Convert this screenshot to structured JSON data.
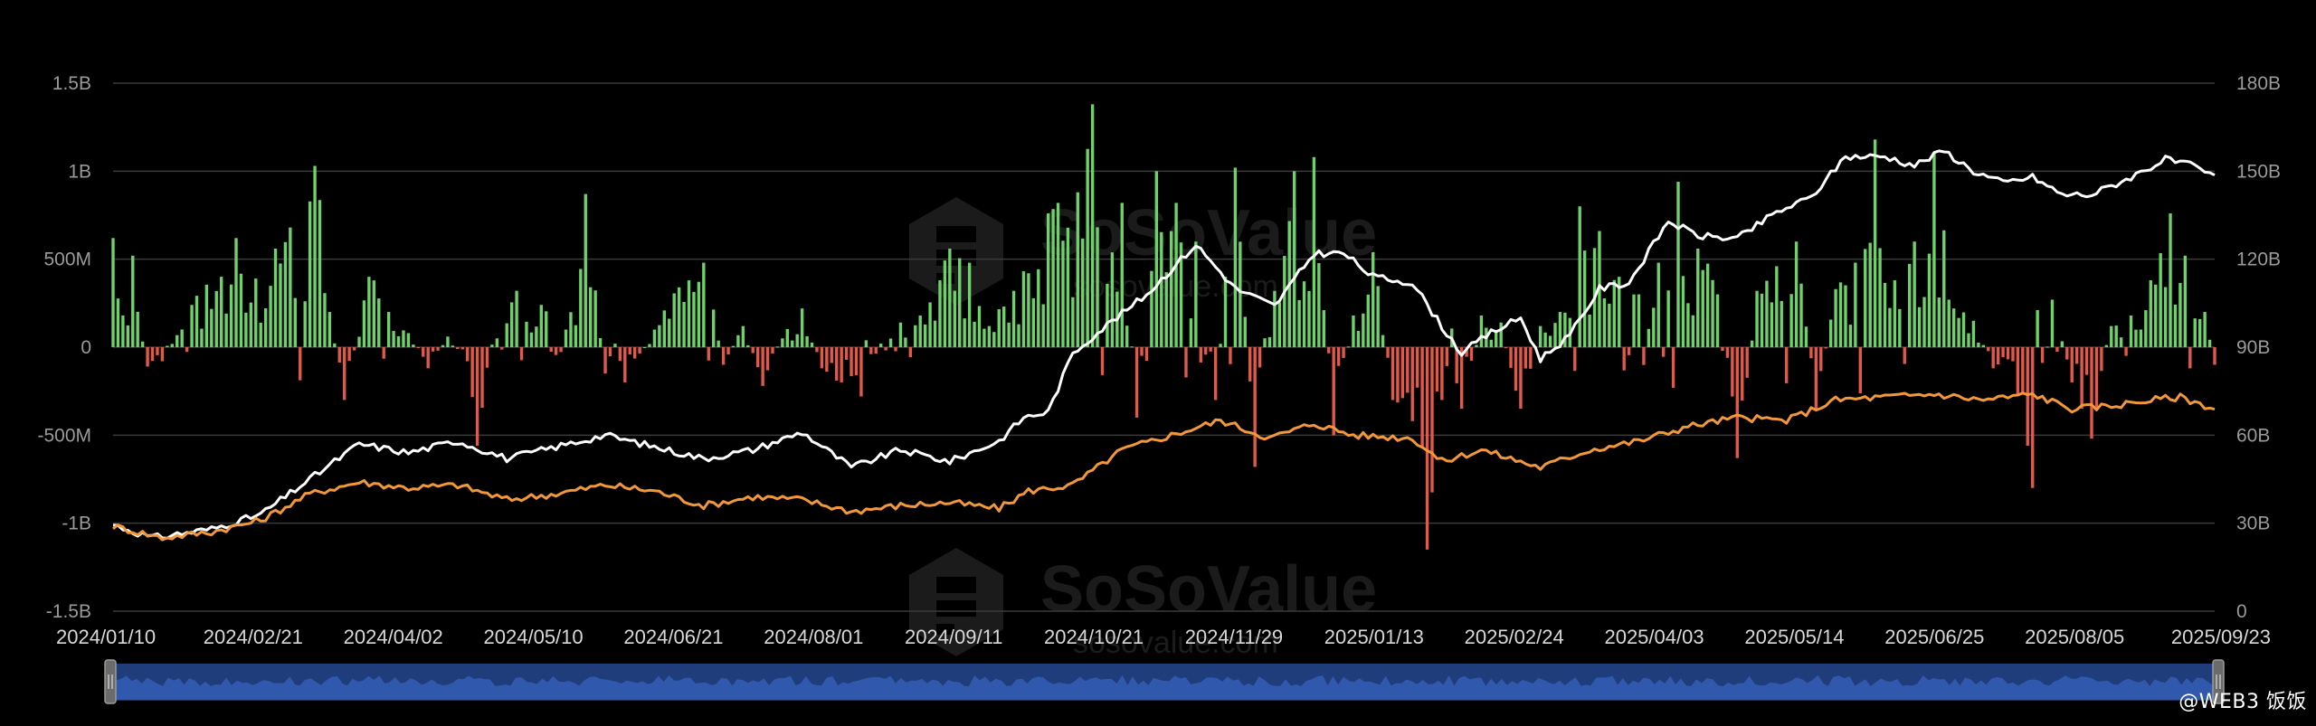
{
  "watermark": {
    "brand": "SoSoValue",
    "sub": "sosovalue.com"
  },
  "credit": "@WEB3 饭饭",
  "colors": {
    "background": "#000000",
    "inflow": "#6fd16a",
    "outflow": "#e2594a",
    "total_net_assets": "#ffffff",
    "cumulative_inflow": "#f2973a",
    "grid": "#3a3a3a",
    "axis_text": "#9a9a9a",
    "navigator": "#1e3d7a",
    "navigator_line": "#3f6fd6"
  },
  "chart_data": {
    "type": "bar",
    "legend": "none",
    "grid": true,
    "x_ticks": [
      "2024/01/10",
      "2024/02/21",
      "2024/04/02",
      "2024/05/10",
      "2024/06/21",
      "2024/08/01",
      "2024/09/11",
      "2024/10/21",
      "2024/11/29",
      "2025/01/13",
      "2025/02/24",
      "2025/04/03",
      "2025/05/14",
      "2025/06/25",
      "2025/08/05",
      "2025/09/23"
    ],
    "y_left": {
      "ticks": [
        "-1.5B",
        "-1B",
        "-500M",
        "0",
        "500M",
        "1B",
        "1.5B"
      ],
      "tick_values": [
        -1500,
        -1000,
        -500,
        0,
        500,
        1000,
        1500
      ],
      "range": [
        -1500,
        1500
      ],
      "unit": "M"
    },
    "y_right": {
      "ticks": [
        "0",
        "30B",
        "60B",
        "90B",
        "120B",
        "150B",
        "180B"
      ],
      "tick_values": [
        0,
        30,
        60,
        90,
        120,
        150,
        180
      ],
      "range": [
        0,
        180
      ],
      "unit": "B"
    },
    "n_days": 428,
    "daily_net_inflow": {
      "description_axis": "left",
      "keyframes": [
        {
          "t": 0,
          "v": 620
        },
        {
          "t": 2,
          "v": 180
        },
        {
          "t": 4,
          "v": 520
        },
        {
          "t": 7,
          "v": -110
        },
        {
          "t": 10,
          "v": -80
        },
        {
          "t": 16,
          "v": 240
        },
        {
          "t": 22,
          "v": 400
        },
        {
          "t": 25,
          "v": 620
        },
        {
          "t": 29,
          "v": 390
        },
        {
          "t": 33,
          "v": 560
        },
        {
          "t": 36,
          "v": 680
        },
        {
          "t": 41,
          "v": 1030
        },
        {
          "t": 44,
          "v": 200
        },
        {
          "t": 47,
          "v": -300
        },
        {
          "t": 52,
          "v": 400
        },
        {
          "t": 56,
          "v": 200
        },
        {
          "t": 60,
          "v": 80
        },
        {
          "t": 64,
          "v": -120
        },
        {
          "t": 68,
          "v": 60
        },
        {
          "t": 72,
          "v": -80
        },
        {
          "t": 74,
          "v": -560
        },
        {
          "t": 78,
          "v": 50
        },
        {
          "t": 82,
          "v": 320
        },
        {
          "t": 87,
          "v": 240
        },
        {
          "t": 92,
          "v": 100
        },
        {
          "t": 96,
          "v": 870
        },
        {
          "t": 100,
          "v": -150
        },
        {
          "t": 104,
          "v": -200
        },
        {
          "t": 110,
          "v": 100
        },
        {
          "t": 115,
          "v": 340
        },
        {
          "t": 120,
          "v": 480
        },
        {
          "t": 124,
          "v": -100
        },
        {
          "t": 128,
          "v": 120
        },
        {
          "t": 132,
          "v": -220
        },
        {
          "t": 136,
          "v": 50
        },
        {
          "t": 140,
          "v": 220
        },
        {
          "t": 144,
          "v": -120
        },
        {
          "t": 148,
          "v": -200
        },
        {
          "t": 152,
          "v": -280
        },
        {
          "t": 156,
          "v": 20
        },
        {
          "t": 160,
          "v": 140
        },
        {
          "t": 164,
          "v": 180
        },
        {
          "t": 168,
          "v": 380
        },
        {
          "t": 170,
          "v": 560
        },
        {
          "t": 174,
          "v": 480
        },
        {
          "t": 178,
          "v": 120
        },
        {
          "t": 183,
          "v": 320
        },
        {
          "t": 186,
          "v": 420
        },
        {
          "t": 190,
          "v": 760
        },
        {
          "t": 192,
          "v": 820
        },
        {
          "t": 196,
          "v": 880
        },
        {
          "t": 199,
          "v": 1380
        },
        {
          "t": 202,
          "v": 360
        },
        {
          "t": 205,
          "v": 820
        },
        {
          "t": 208,
          "v": -400
        },
        {
          "t": 212,
          "v": 1000
        },
        {
          "t": 216,
          "v": 820
        },
        {
          "t": 220,
          "v": 600
        },
        {
          "t": 224,
          "v": -300
        },
        {
          "t": 228,
          "v": 1020
        },
        {
          "t": 232,
          "v": -680
        },
        {
          "t": 236,
          "v": 320
        },
        {
          "t": 240,
          "v": 1000
        },
        {
          "t": 244,
          "v": 1080
        },
        {
          "t": 248,
          "v": -500
        },
        {
          "t": 252,
          "v": 180
        },
        {
          "t": 256,
          "v": 540
        },
        {
          "t": 260,
          "v": -300
        },
        {
          "t": 264,
          "v": -420
        },
        {
          "t": 267,
          "v": -1150
        },
        {
          "t": 270,
          "v": -300
        },
        {
          "t": 274,
          "v": -350
        },
        {
          "t": 278,
          "v": 180
        },
        {
          "t": 282,
          "v": 140
        },
        {
          "t": 286,
          "v": -350
        },
        {
          "t": 290,
          "v": 120
        },
        {
          "t": 294,
          "v": 200
        },
        {
          "t": 298,
          "v": 800
        },
        {
          "t": 302,
          "v": 660
        },
        {
          "t": 306,
          "v": 400
        },
        {
          "t": 310,
          "v": 300
        },
        {
          "t": 314,
          "v": 480
        },
        {
          "t": 318,
          "v": 940
        },
        {
          "t": 322,
          "v": 560
        },
        {
          "t": 326,
          "v": 300
        },
        {
          "t": 330,
          "v": -630
        },
        {
          "t": 334,
          "v": 320
        },
        {
          "t": 338,
          "v": 460
        },
        {
          "t": 342,
          "v": 600
        },
        {
          "t": 346,
          "v": -350
        },
        {
          "t": 350,
          "v": 330
        },
        {
          "t": 354,
          "v": 480
        },
        {
          "t": 358,
          "v": 1180
        },
        {
          "t": 362,
          "v": 380
        },
        {
          "t": 366,
          "v": 600
        },
        {
          "t": 370,
          "v": 1100
        },
        {
          "t": 374,
          "v": 220
        },
        {
          "t": 378,
          "v": 150
        },
        {
          "t": 382,
          "v": -120
        },
        {
          "t": 386,
          "v": -80
        },
        {
          "t": 390,
          "v": -800
        },
        {
          "t": 394,
          "v": 270
        },
        {
          "t": 398,
          "v": -200
        },
        {
          "t": 402,
          "v": -520
        },
        {
          "t": 406,
          "v": 120
        },
        {
          "t": 410,
          "v": 180
        },
        {
          "t": 414,
          "v": 380
        },
        {
          "t": 418,
          "v": 760
        },
        {
          "t": 421,
          "v": 520
        },
        {
          "t": 425,
          "v": 200
        },
        {
          "t": 427,
          "v": -100
        }
      ]
    },
    "series": [
      {
        "axis": "right",
        "keyframes": [
          {
            "t": 0,
            "v": 29.5
          },
          {
            "t": 8,
            "v": 25
          },
          {
            "t": 20,
            "v": 28
          },
          {
            "t": 30,
            "v": 33
          },
          {
            "t": 40,
            "v": 45
          },
          {
            "t": 50,
            "v": 57
          },
          {
            "t": 60,
            "v": 54
          },
          {
            "t": 70,
            "v": 58
          },
          {
            "t": 80,
            "v": 52
          },
          {
            "t": 90,
            "v": 56
          },
          {
            "t": 100,
            "v": 60
          },
          {
            "t": 110,
            "v": 56
          },
          {
            "t": 120,
            "v": 52
          },
          {
            "t": 130,
            "v": 55
          },
          {
            "t": 140,
            "v": 61
          },
          {
            "t": 150,
            "v": 49
          },
          {
            "t": 160,
            "v": 55
          },
          {
            "t": 170,
            "v": 51
          },
          {
            "t": 180,
            "v": 58
          },
          {
            "t": 185,
            "v": 66
          },
          {
            "t": 190,
            "v": 68
          },
          {
            "t": 195,
            "v": 88
          },
          {
            "t": 200,
            "v": 95
          },
          {
            "t": 210,
            "v": 108
          },
          {
            "t": 220,
            "v": 125
          },
          {
            "t": 228,
            "v": 110
          },
          {
            "t": 236,
            "v": 104
          },
          {
            "t": 244,
            "v": 122
          },
          {
            "t": 250,
            "v": 122
          },
          {
            "t": 256,
            "v": 114
          },
          {
            "t": 264,
            "v": 112
          },
          {
            "t": 270,
            "v": 97
          },
          {
            "t": 274,
            "v": 88
          },
          {
            "t": 280,
            "v": 95
          },
          {
            "t": 286,
            "v": 100
          },
          {
            "t": 290,
            "v": 86
          },
          {
            "t": 296,
            "v": 94
          },
          {
            "t": 302,
            "v": 110
          },
          {
            "t": 308,
            "v": 112
          },
          {
            "t": 316,
            "v": 133
          },
          {
            "t": 322,
            "v": 128
          },
          {
            "t": 330,
            "v": 127
          },
          {
            "t": 338,
            "v": 136
          },
          {
            "t": 345,
            "v": 141
          },
          {
            "t": 352,
            "v": 155
          },
          {
            "t": 360,
            "v": 155
          },
          {
            "t": 366,
            "v": 152
          },
          {
            "t": 372,
            "v": 157
          },
          {
            "t": 378,
            "v": 150
          },
          {
            "t": 384,
            "v": 146
          },
          {
            "t": 390,
            "v": 148
          },
          {
            "t": 396,
            "v": 142
          },
          {
            "t": 402,
            "v": 142
          },
          {
            "t": 410,
            "v": 148
          },
          {
            "t": 417,
            "v": 154
          },
          {
            "t": 422,
            "v": 152
          },
          {
            "t": 427,
            "v": 148
          }
        ]
      },
      {
        "axis": "right",
        "keyframes": [
          {
            "t": 0,
            "v": 29
          },
          {
            "t": 10,
            "v": 25
          },
          {
            "t": 20,
            "v": 27
          },
          {
            "t": 30,
            "v": 31
          },
          {
            "t": 40,
            "v": 40
          },
          {
            "t": 50,
            "v": 44
          },
          {
            "t": 60,
            "v": 42
          },
          {
            "t": 70,
            "v": 43
          },
          {
            "t": 80,
            "v": 38
          },
          {
            "t": 90,
            "v": 40
          },
          {
            "t": 100,
            "v": 43
          },
          {
            "t": 110,
            "v": 41
          },
          {
            "t": 120,
            "v": 36
          },
          {
            "t": 130,
            "v": 39
          },
          {
            "t": 140,
            "v": 38
          },
          {
            "t": 150,
            "v": 34
          },
          {
            "t": 160,
            "v": 36
          },
          {
            "t": 170,
            "v": 37
          },
          {
            "t": 180,
            "v": 35
          },
          {
            "t": 186,
            "v": 41
          },
          {
            "t": 195,
            "v": 43
          },
          {
            "t": 205,
            "v": 55
          },
          {
            "t": 215,
            "v": 60
          },
          {
            "t": 225,
            "v": 65
          },
          {
            "t": 235,
            "v": 59
          },
          {
            "t": 244,
            "v": 64
          },
          {
            "t": 252,
            "v": 60
          },
          {
            "t": 264,
            "v": 59
          },
          {
            "t": 270,
            "v": 51
          },
          {
            "t": 278,
            "v": 55
          },
          {
            "t": 290,
            "v": 49
          },
          {
            "t": 300,
            "v": 55
          },
          {
            "t": 310,
            "v": 58
          },
          {
            "t": 320,
            "v": 63
          },
          {
            "t": 330,
            "v": 66
          },
          {
            "t": 340,
            "v": 65
          },
          {
            "t": 350,
            "v": 72
          },
          {
            "t": 360,
            "v": 73
          },
          {
            "t": 370,
            "v": 74
          },
          {
            "t": 380,
            "v": 72
          },
          {
            "t": 390,
            "v": 74
          },
          {
            "t": 398,
            "v": 69
          },
          {
            "t": 406,
            "v": 70
          },
          {
            "t": 414,
            "v": 72
          },
          {
            "t": 420,
            "v": 73
          },
          {
            "t": 427,
            "v": 69
          }
        ]
      }
    ]
  }
}
